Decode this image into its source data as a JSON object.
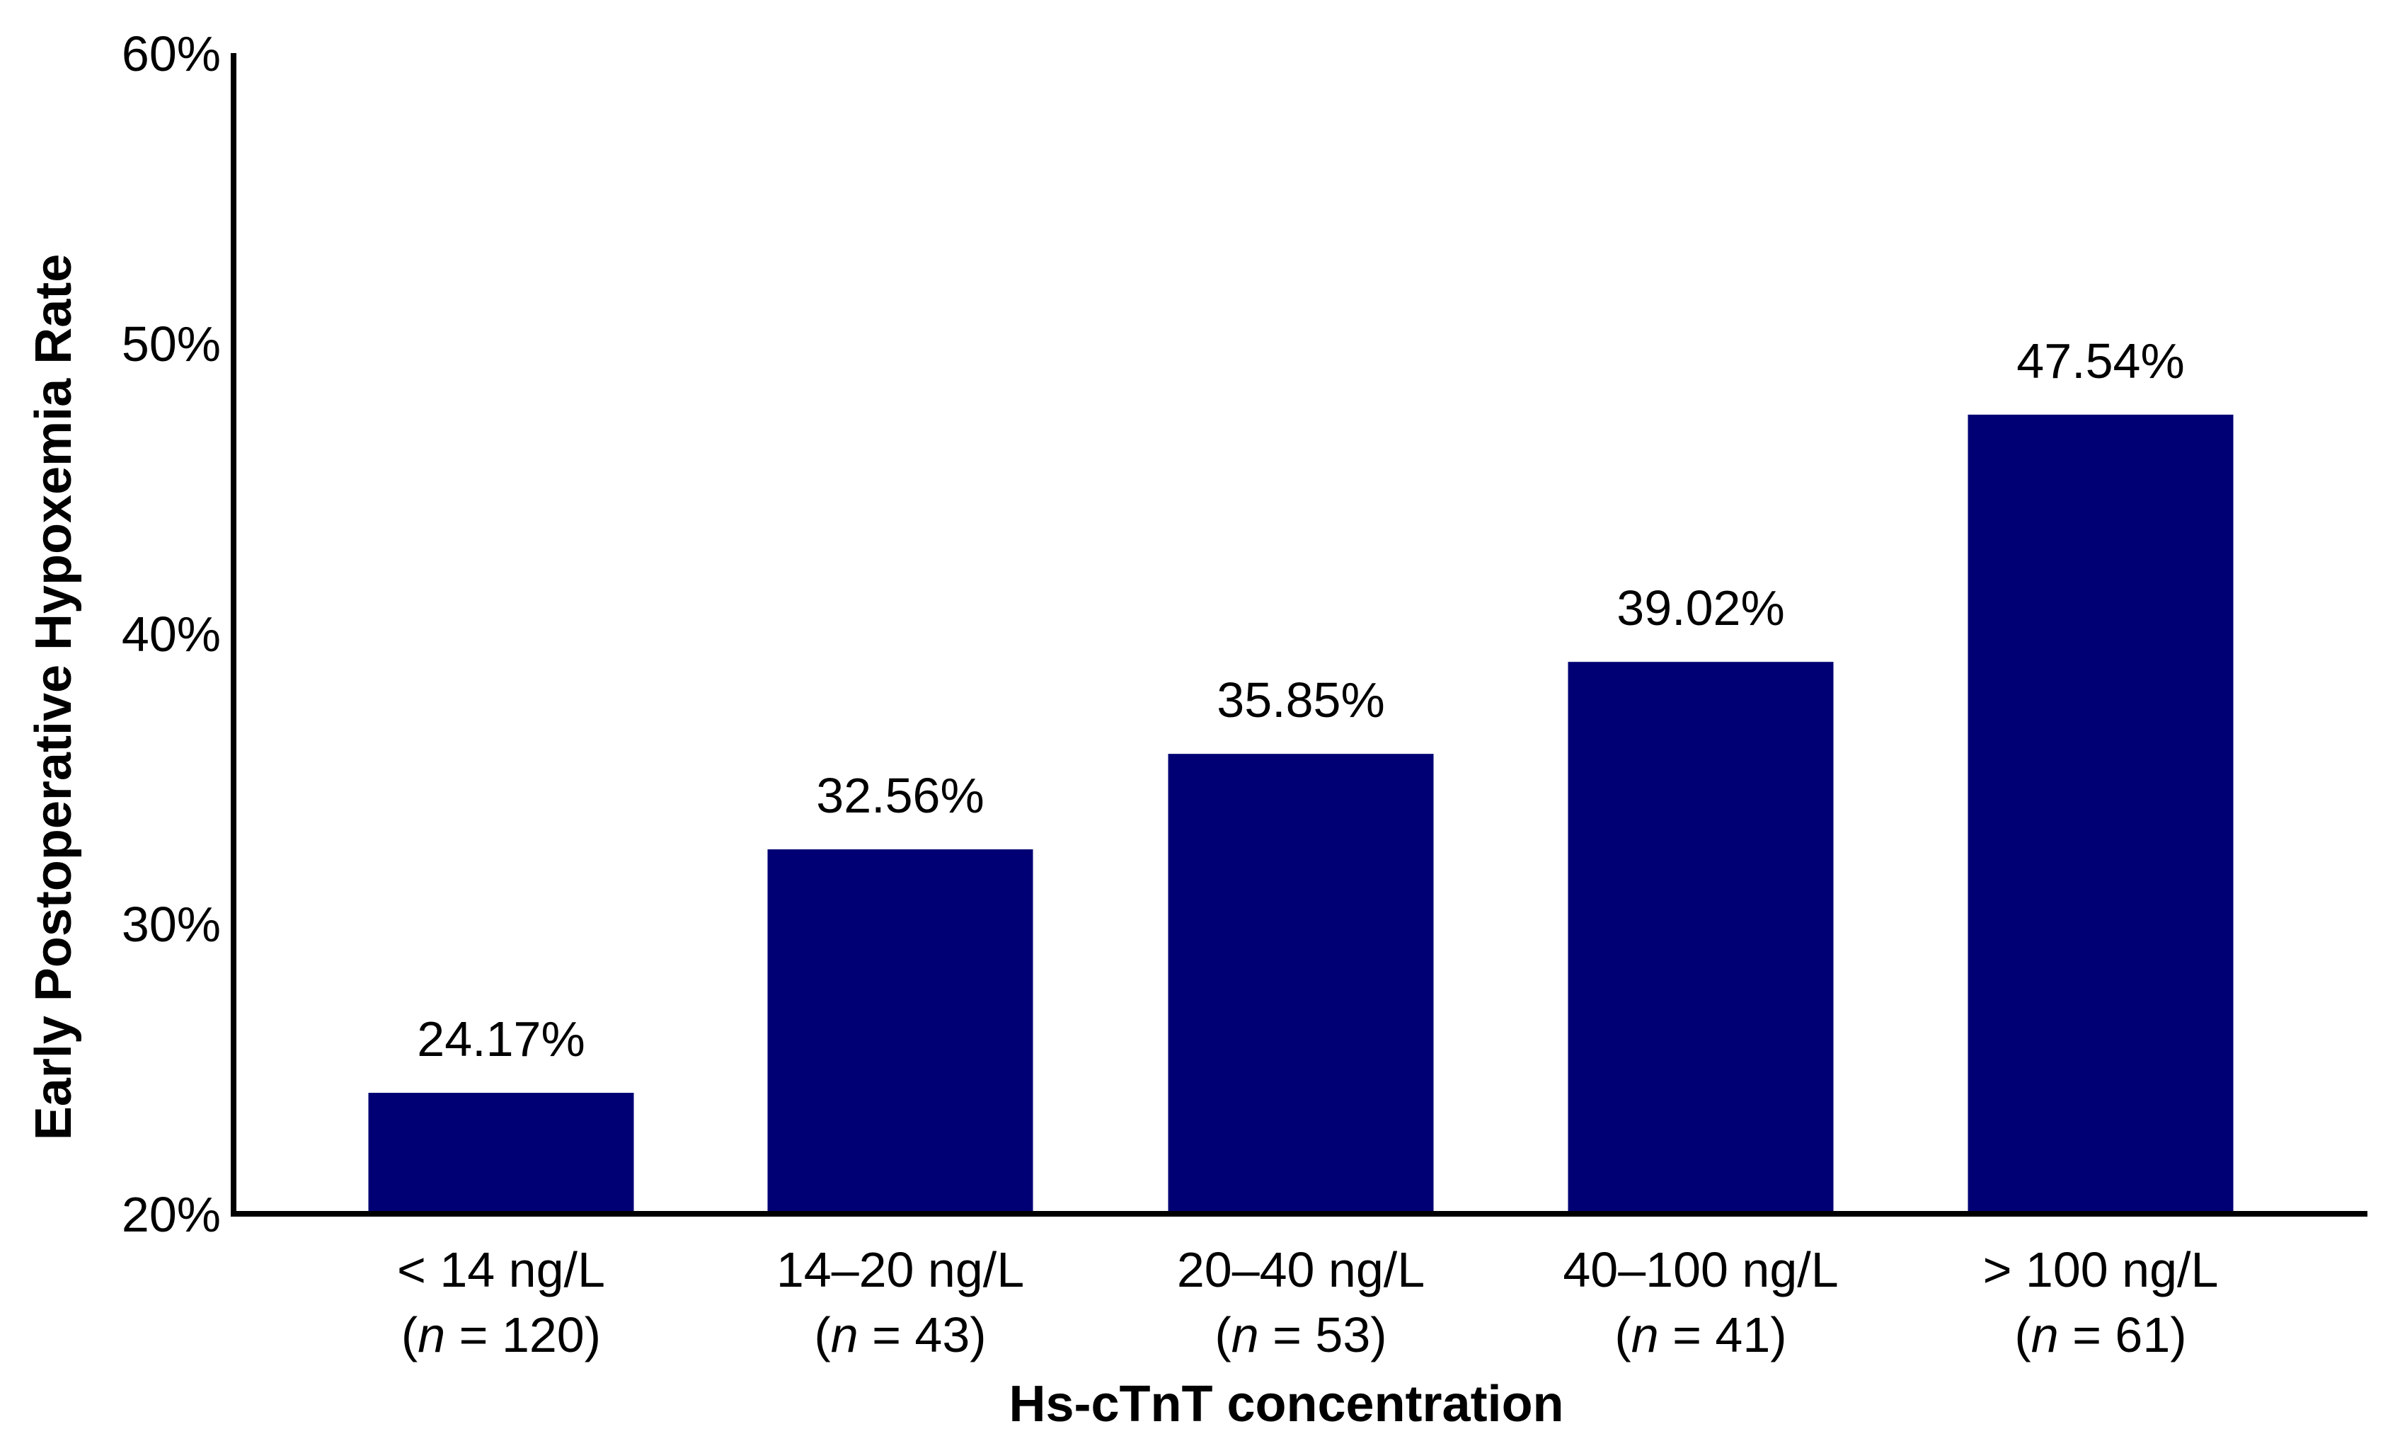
{
  "chart_data": {
    "type": "bar",
    "title": "",
    "xlabel": "Hs-cTnT concentration",
    "ylabel": "Early Postoperative Hypoxemia Rate",
    "categories": [
      {
        "label": "< 14 ng/L",
        "n_prefix": "(",
        "n_var": "n",
        "n_text": " = 120)"
      },
      {
        "label": "14–20 ng/L",
        "n_prefix": "(",
        "n_var": "n",
        "n_text": " = 43)"
      },
      {
        "label": "20–40 ng/L",
        "n_prefix": "(",
        "n_var": "n",
        "n_text": " = 53)"
      },
      {
        "label": "40–100 ng/L",
        "n_prefix": "(",
        "n_var": "n",
        "n_text": " = 41)"
      },
      {
        "label": "> 100 ng/L",
        "n_prefix": "(",
        "n_var": "n",
        "n_text": " = 61)"
      }
    ],
    "values": [
      24.17,
      32.56,
      35.85,
      39.02,
      47.54
    ],
    "data_labels": [
      "24.17%",
      "32.56%",
      "35.85%",
      "39.02%",
      "47.54%"
    ],
    "ylim": [
      20,
      60
    ],
    "yticks": [
      {
        "value": 20,
        "label": "20%"
      },
      {
        "value": 30,
        "label": "30%"
      },
      {
        "value": 40,
        "label": "40%"
      },
      {
        "value": 50,
        "label": "50%"
      },
      {
        "value": 60,
        "label": "60%"
      }
    ],
    "grid": false,
    "legend": "none",
    "colors": {
      "bar": "#000074",
      "axis": "#000000",
      "text": "#000000"
    }
  }
}
